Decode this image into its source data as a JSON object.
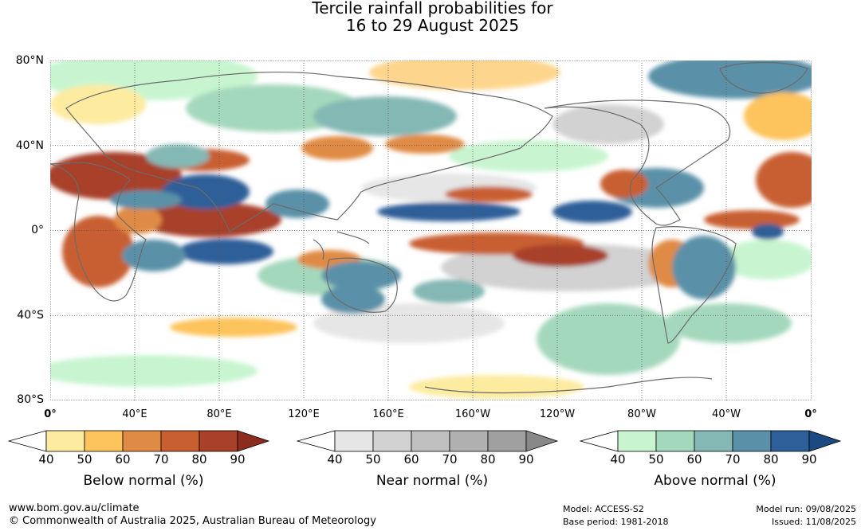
{
  "title_line1": "Tercile rainfall probabilities for",
  "title_line2": "16 to 29 August 2025",
  "lat_labels": [
    "80°N",
    "40°N",
    "0°",
    "40°S",
    "80°S"
  ],
  "lon_labels": [
    "0°",
    "40°E",
    "80°E",
    "120°E",
    "160°E",
    "160°W",
    "120°W",
    "80°W",
    "40°W",
    "0°"
  ],
  "colorbars": [
    {
      "title": "Below normal (%)",
      "ticks": [
        "40",
        "50",
        "60",
        "70",
        "80",
        "90"
      ],
      "colors": [
        "#ffffff",
        "#fdeba0",
        "#fdc35c",
        "#e08b45",
        "#c85f30",
        "#a8402a",
        "#8b2c1f"
      ]
    },
    {
      "title": "Near normal (%)",
      "ticks": [
        "40",
        "50",
        "60",
        "70",
        "80",
        "90"
      ],
      "colors": [
        "#ffffff",
        "#e6e6e6",
        "#d2d2d2",
        "#c0c0c0",
        "#b0b0b0",
        "#a0a0a0",
        "#888888"
      ]
    },
    {
      "title": "Above normal (%)",
      "ticks": [
        "40",
        "50",
        "60",
        "70",
        "80",
        "90"
      ],
      "colors": [
        "#ffffff",
        "#c8f5d0",
        "#a4d8bc",
        "#84b8b4",
        "#5a91a8",
        "#2f5f98",
        "#1b4a82"
      ]
    }
  ],
  "footer": {
    "url": "www.bom.gov.au/climate",
    "copyright": "© Commonwealth of Australia 2025, Australian Bureau of Meteorology",
    "model": "Model: ACCESS-S2",
    "base_period": "Base period: 1981-2018",
    "model_run": "Model run: 09/08/2025",
    "issued": "Issued: 11/08/2025"
  }
}
